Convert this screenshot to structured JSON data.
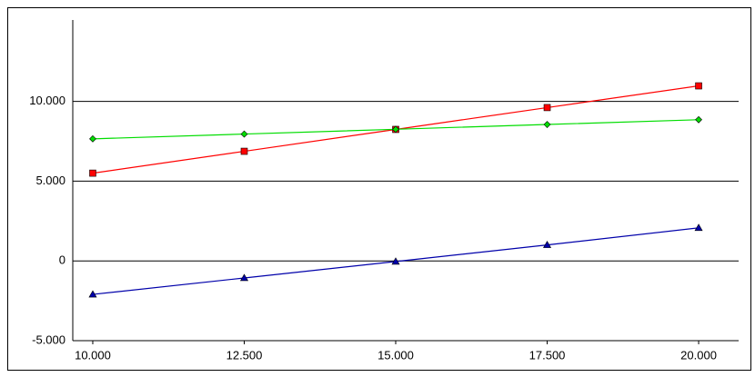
{
  "chart_data": {
    "type": "line",
    "x": [
      10000,
      12500,
      15000,
      17500,
      20000
    ],
    "xlim": [
      9670,
      20660
    ],
    "xticks": [
      {
        "value": 10000,
        "label": "10.000"
      },
      {
        "value": 12500,
        "label": "12.500"
      },
      {
        "value": 15000,
        "label": "15.000"
      },
      {
        "value": 17500,
        "label": "17.500"
      },
      {
        "value": 20000,
        "label": "20.000"
      }
    ],
    "ylim": [
      -5000,
      15100
    ],
    "yticks": [
      {
        "value": -5000,
        "label": "-5.000"
      },
      0,
      {
        "value": 5000,
        "label": "5.000"
      },
      {
        "value": 10000,
        "label": "10.000"
      }
    ],
    "grid": true,
    "series": [
      {
        "color": "#ff0000",
        "marker": "square",
        "values": [
          5500,
          6870,
          8240,
          9610,
          10970
        ]
      },
      {
        "color": "#00dd00",
        "marker": "diamond",
        "values": [
          7650,
          7950,
          8250,
          8550,
          8850
        ]
      },
      {
        "color": "#0000aa",
        "marker": "triangle",
        "values": [
          -2100,
          -1070,
          -40,
          1000,
          2070
        ]
      }
    ]
  }
}
